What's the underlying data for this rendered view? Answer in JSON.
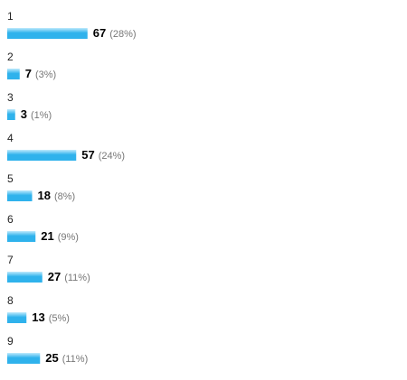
{
  "chart_data": {
    "type": "bar",
    "orientation": "horizontal",
    "color": "#2fb2ec",
    "categories": [
      "1",
      "2",
      "3",
      "4",
      "5",
      "6",
      "7",
      "8",
      "9"
    ],
    "values": [
      67,
      7,
      3,
      57,
      18,
      21,
      27,
      13,
      25
    ],
    "percent_labels": [
      "(28%)",
      "(3%)",
      "(1%)",
      "(24%)",
      "(8%)",
      "(9%)",
      "(11%)",
      "(5%)",
      "(11%)"
    ]
  }
}
